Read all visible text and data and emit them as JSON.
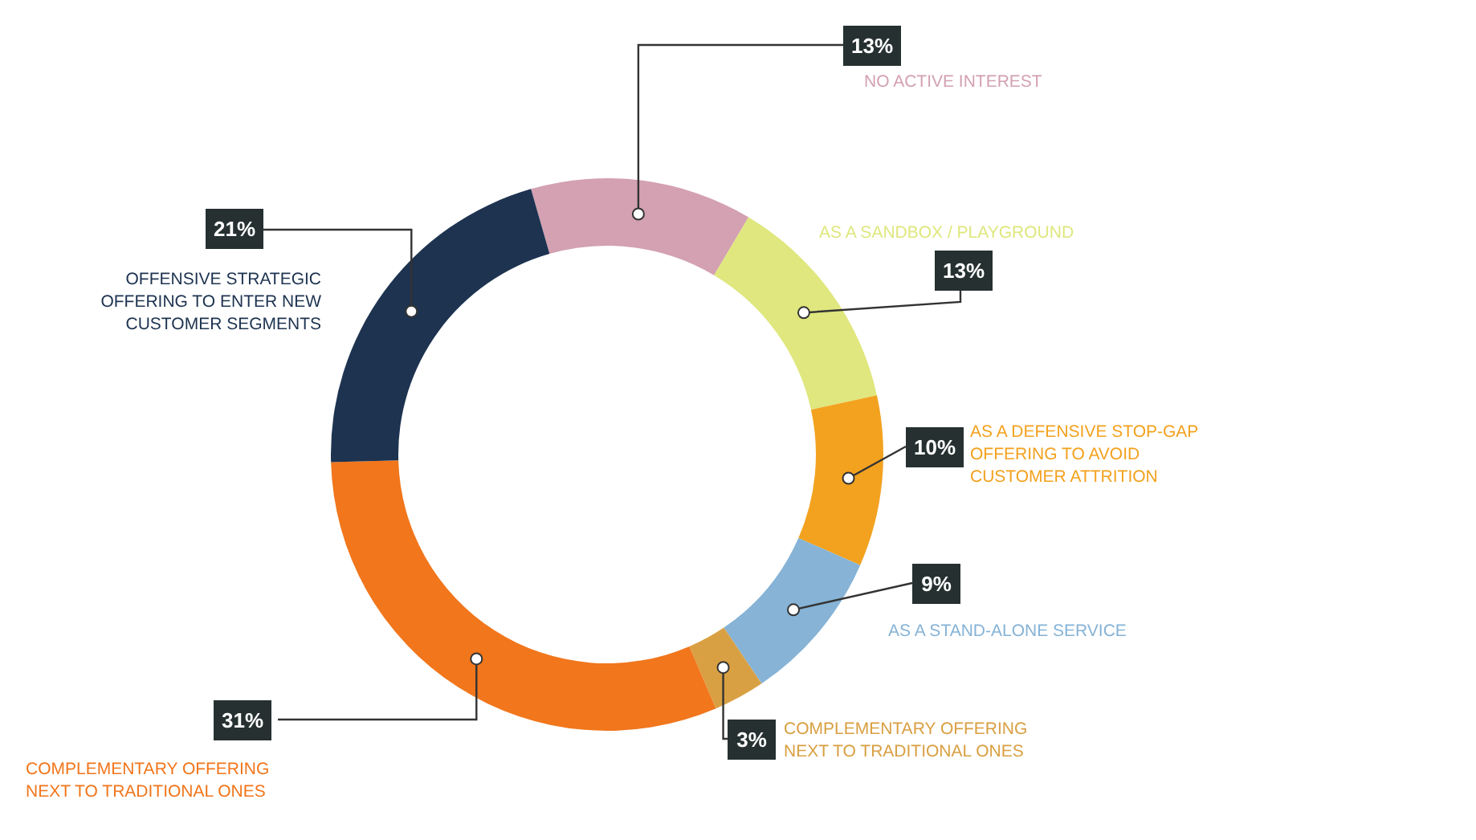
{
  "chart_data": {
    "type": "donut",
    "categories": [
      "NO ACTIVE INTEREST",
      "AS A SANDBOX / PLAYGROUND",
      "AS A DEFENSIVE STOP-GAP\nOFFERING TO AVOID\nCUSTOMER ATTRITION",
      "AS A STAND-ALONE SERVICE",
      "COMPLEMENTARY OFFERING\nNEXT TO TRADITIONAL ONES",
      "COMPLEMENTARY OFFERING\nNEXT TO TRADITIONAL ONES",
      "OFFENSIVE STRATEGIC\nOFFERING TO ENTER NEW\nCUSTOMER SEGMENTS"
    ],
    "values": [
      13,
      13,
      10,
      9,
      3,
      31,
      21
    ],
    "value_labels": [
      "13%",
      "13%",
      "10%",
      "9%",
      "3%",
      "31%",
      "21%"
    ],
    "colors": [
      "#d3a1b1",
      "#dfe77e",
      "#f3a21f",
      "#86b3d6",
      "#d9a043",
      "#f1761c",
      "#1d3350"
    ]
  }
}
